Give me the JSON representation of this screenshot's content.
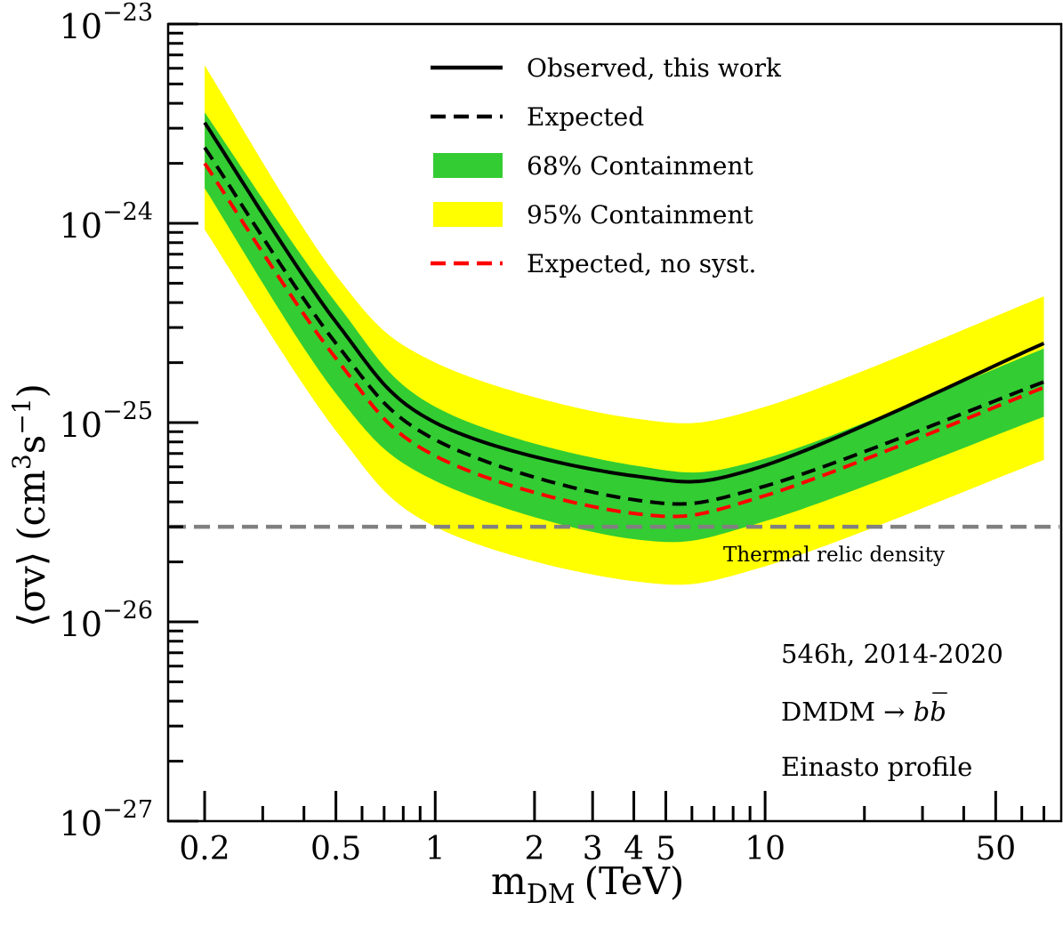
{
  "chart_data": {
    "type": "line",
    "title": "",
    "xlabel": "m_DM (TeV)",
    "xlabel_main": "m",
    "xlabel_sub": "DM",
    "xlabel_unit": "(TeV)",
    "ylabel": "⟨σv⟩ (cm^3 s^-1)",
    "ylabel_parts": {
      "bracket": "⟨σv⟩",
      "unit_open": "(cm",
      "exp3": "3",
      "s": "s",
      "exp_neg1": "−1",
      "close": ")"
    },
    "xscale": "log",
    "yscale": "log",
    "xlim": [
      0.155,
      79
    ],
    "ylim": [
      1e-27,
      1e-23
    ],
    "grid": false,
    "legend_position": "top-center",
    "x_major_ticks": [
      0.2,
      0.5,
      1,
      2,
      3,
      4,
      5,
      10,
      50
    ],
    "x_tick_labels": [
      "0.2",
      "0.5",
      "1",
      "2",
      "3",
      "4",
      "5",
      "10",
      "50"
    ],
    "x_minor_ticks": [
      0.3,
      0.4,
      0.6,
      0.7,
      0.8,
      0.9,
      6,
      7,
      8,
      9,
      20,
      30,
      40,
      60,
      70
    ],
    "y_major_ticks": [
      1e-23,
      1e-24,
      1e-25,
      1e-26,
      1e-27
    ],
    "y_tick_labels": [
      {
        "base": "10",
        "exp": "−23"
      },
      {
        "base": "10",
        "exp": "−24"
      },
      {
        "base": "10",
        "exp": "−25"
      },
      {
        "base": "10",
        "exp": "−26"
      },
      {
        "base": "10",
        "exp": "−27"
      }
    ],
    "x": [
      0.2,
      0.5,
      1,
      4,
      10,
      70
    ],
    "series": [
      {
        "name": "Observed, this work",
        "style": "solid",
        "color": "#000000",
        "values": [
          3.2e-24,
          3.2e-25,
          1e-25,
          5.4e-26,
          6.1e-26,
          2.5e-25
        ]
      },
      {
        "name": "Expected",
        "style": "dashed",
        "color": "#000000",
        "values": [
          2.4e-24,
          2.5e-25,
          8.2e-26,
          4.1e-26,
          4.8e-26,
          1.6e-25
        ]
      },
      {
        "name": "Expected, no syst.",
        "style": "dashed",
        "color": "#ff0000",
        "values": [
          2e-24,
          2.1e-25,
          6.8e-26,
          3.5e-26,
          4.3e-26,
          1.5e-25
        ]
      }
    ],
    "bands": [
      {
        "name": "95% Containment",
        "color": "#ffff00",
        "lower": [
          9.3e-25,
          9.1e-26,
          3e-26,
          1.6e-26,
          1.9e-26,
          6.5e-26
        ],
        "upper": [
          6.2e-24,
          5.5e-25,
          2e-25,
          1.05e-25,
          1.2e-25,
          4.3e-25
        ]
      },
      {
        "name": "68% Containment",
        "color": "#33cc33",
        "lower": [
          1.5e-24,
          1.4e-25,
          5.1e-26,
          2.6e-26,
          3.2e-26,
          1.07e-25
        ],
        "upper": [
          3.6e-24,
          4e-25,
          1.2e-25,
          6.1e-26,
          6.6e-26,
          2.35e-25
        ]
      }
    ],
    "reference_line": {
      "name": "Thermal relic density",
      "value": 3e-26,
      "color": "#808080",
      "style": "dashed"
    },
    "legend": [
      {
        "label": "Observed, this work",
        "kind": "line-solid",
        "color": "#000000"
      },
      {
        "label": "Expected",
        "kind": "line-dashed",
        "color": "#000000"
      },
      {
        "label": "68% Containment",
        "kind": "patch",
        "color": "#33cc33"
      },
      {
        "label": "95% Containment",
        "kind": "patch",
        "color": "#ffff00"
      },
      {
        "label": "Expected, no syst.",
        "kind": "line-dashed",
        "color": "#ff0000"
      }
    ],
    "annotations": [
      "546h, 2014-2020",
      "DMDM → bb̄",
      "Einasto profile"
    ],
    "annotation_parts": {
      "dmdm_prefix": "DMDM → ",
      "b": "b",
      "bbar": "b"
    }
  }
}
